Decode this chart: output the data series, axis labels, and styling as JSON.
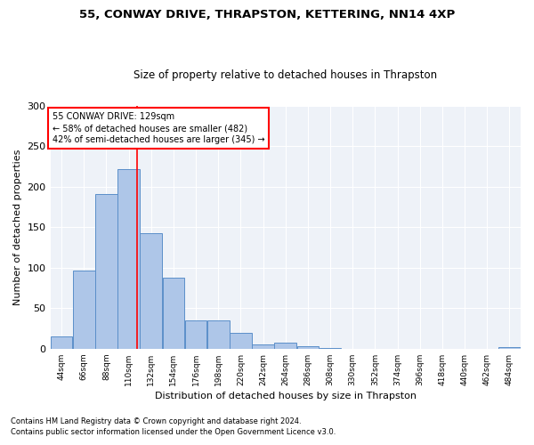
{
  "title1": "55, CONWAY DRIVE, THRAPSTON, KETTERING, NN14 4XP",
  "title2": "Size of property relative to detached houses in Thrapston",
  "xlabel": "Distribution of detached houses by size in Thrapston",
  "ylabel": "Number of detached properties",
  "bar_color": "#aec6e8",
  "bar_edge_color": "#5b8fc9",
  "background_color": "#eef2f8",
  "annotation_text": "55 CONWAY DRIVE: 129sqm\n← 58% of detached houses are smaller (482)\n42% of semi-detached houses are larger (345) →",
  "vline_x": 129,
  "property_size": 129,
  "bin_edges": [
    44,
    66,
    88,
    110,
    132,
    154,
    176,
    198,
    220,
    242,
    264,
    286,
    308,
    330,
    352,
    374,
    396,
    418,
    440,
    462,
    484,
    506
  ],
  "bar_heights": [
    15,
    96,
    191,
    222,
    143,
    88,
    35,
    35,
    20,
    5,
    8,
    3,
    1,
    0,
    0,
    0,
    0,
    0,
    0,
    0,
    2
  ],
  "ylim": [
    0,
    300
  ],
  "yticks": [
    0,
    50,
    100,
    150,
    200,
    250,
    300
  ],
  "footer1": "Contains HM Land Registry data © Crown copyright and database right 2024.",
  "footer2": "Contains public sector information licensed under the Open Government Licence v3.0."
}
